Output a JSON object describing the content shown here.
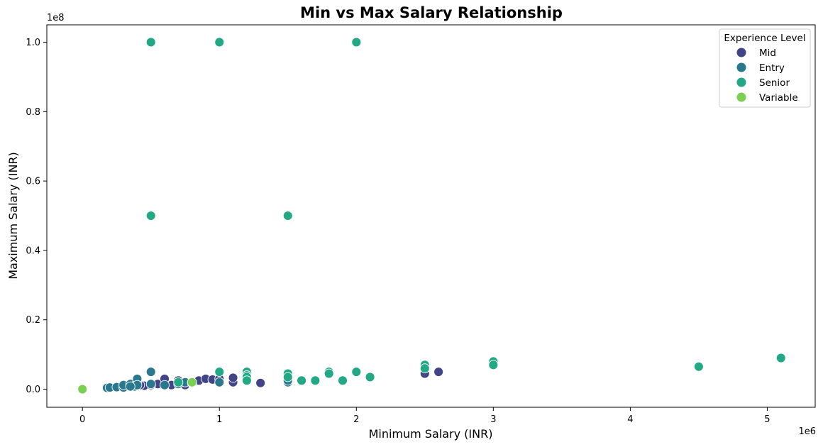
{
  "chart_data": {
    "type": "scatter",
    "title": "Min vs Max Salary Relationship",
    "xlabel": "Minimum Salary (INR)",
    "ylabel": "Maximum Salary (INR)",
    "x_multiplier_label": "1e6",
    "y_multiplier_label": "1e8",
    "x_ticks": [
      0,
      1,
      2,
      3,
      4,
      5
    ],
    "y_ticks": [
      0.0,
      0.2,
      0.4,
      0.6,
      0.8,
      1.0
    ],
    "x_tick_labels": [
      "0",
      "1",
      "2",
      "3",
      "4",
      "5"
    ],
    "y_tick_labels": [
      "0.0",
      "0.2",
      "0.4",
      "0.6",
      "0.8",
      "1.0"
    ],
    "xlim": [
      -0.26,
      5.35
    ],
    "ylim": [
      -0.052,
      1.05
    ],
    "grid": false,
    "legend": {
      "title": "Experience Level",
      "position": "top-right"
    },
    "series": [
      {
        "name": "Mid",
        "color": "#414487",
        "points": [
          [
            0.55,
            0.015
          ],
          [
            0.6,
            0.03
          ],
          [
            0.65,
            0.012
          ],
          [
            0.7,
            0.02
          ],
          [
            0.75,
            0.012
          ],
          [
            0.85,
            0.025
          ],
          [
            0.9,
            0.03
          ],
          [
            0.95,
            0.028
          ],
          [
            1.0,
            0.03
          ],
          [
            1.1,
            0.02
          ],
          [
            1.1,
            0.033
          ],
          [
            1.3,
            0.018
          ],
          [
            2.5,
            0.045
          ],
          [
            2.6,
            0.05
          ],
          [
            0.5,
            0.012
          ],
          [
            0.45,
            0.01
          ],
          [
            0.42,
            0.012
          ],
          [
            0.8,
            0.02
          ],
          [
            0.7,
            0.025
          ]
        ]
      },
      {
        "name": "Entry",
        "color": "#2a788e",
        "points": [
          [
            0.18,
            0.004
          ],
          [
            0.2,
            0.005
          ],
          [
            0.25,
            0.006
          ],
          [
            0.3,
            0.005
          ],
          [
            0.3,
            0.012
          ],
          [
            0.35,
            0.01
          ],
          [
            0.35,
            0.015
          ],
          [
            0.38,
            0.008
          ],
          [
            0.4,
            0.02
          ],
          [
            0.4,
            0.03
          ],
          [
            0.4,
            0.012
          ],
          [
            0.5,
            0.05
          ],
          [
            0.5,
            0.015
          ],
          [
            0.6,
            0.012
          ],
          [
            0.7,
            0.015
          ],
          [
            0.75,
            0.02
          ],
          [
            0.8,
            0.018
          ],
          [
            1.0,
            0.02
          ],
          [
            1.2,
            0.025
          ],
          [
            1.5,
            0.02
          ],
          [
            1.5,
            0.025
          ],
          [
            0.35,
            0.008
          ]
        ]
      },
      {
        "name": "Senior",
        "color": "#22a884",
        "points": [
          [
            0.5,
            1.0
          ],
          [
            1.0,
            1.0
          ],
          [
            2.0,
            1.0
          ],
          [
            0.5,
            0.5
          ],
          [
            1.5,
            0.5
          ],
          [
            1.0,
            0.05
          ],
          [
            1.2,
            0.05
          ],
          [
            1.2,
            0.04
          ],
          [
            1.2,
            0.035
          ],
          [
            1.5,
            0.045
          ],
          [
            1.5,
            0.035
          ],
          [
            1.6,
            0.025
          ],
          [
            1.7,
            0.025
          ],
          [
            1.8,
            0.05
          ],
          [
            1.8,
            0.045
          ],
          [
            1.9,
            0.025
          ],
          [
            2.0,
            0.05
          ],
          [
            2.1,
            0.035
          ],
          [
            2.5,
            0.07
          ],
          [
            2.5,
            0.06
          ],
          [
            3.0,
            0.08
          ],
          [
            3.0,
            0.07
          ],
          [
            4.5,
            0.065
          ],
          [
            5.1,
            0.09
          ],
          [
            0.7,
            0.02
          ],
          [
            1.2,
            0.025
          ]
        ]
      },
      {
        "name": "Variable",
        "color": "#7ad151",
        "points": [
          [
            0.0,
            0.0
          ],
          [
            0.8,
            0.02
          ]
        ]
      }
    ]
  }
}
